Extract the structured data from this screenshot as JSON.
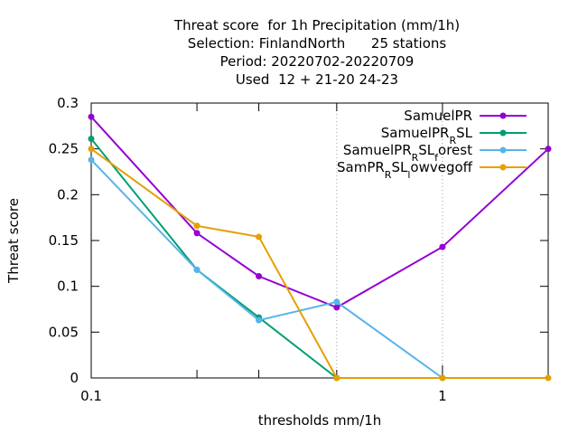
{
  "chart_data": {
    "type": "line",
    "title_lines": [
      "Threat score  for 1h Precipitation (mm/1h)",
      "Selection: FinlandNorth      25 stations",
      "Period: 20220702-20220709",
      "Used  12 + 21-20 24-23"
    ],
    "xlabel": "thresholds mm/1h",
    "ylabel": "Threat score",
    "x_scale": "log",
    "xlim": [
      0.1,
      2.0
    ],
    "ylim": [
      0,
      0.3
    ],
    "x_ticks": [
      {
        "value": 0.1,
        "label": "0.1"
      },
      {
        "value": 1,
        "label": "1"
      }
    ],
    "x_minor_ticks": [
      0.2,
      0.3,
      0.5
    ],
    "y_ticks": [
      {
        "value": 0,
        "label": "0"
      },
      {
        "value": 0.05,
        "label": "0.05"
      },
      {
        "value": 0.1,
        "label": "0.1"
      },
      {
        "value": 0.15,
        "label": "0.15"
      },
      {
        "value": 0.2,
        "label": "0.2"
      },
      {
        "value": 0.25,
        "label": "0.25"
      },
      {
        "value": 0.3,
        "label": "0.3"
      }
    ],
    "grid": "dotted gray at 0.5 and 1",
    "legend_placement": "top-right",
    "series": [
      {
        "name": "SamuelPR",
        "name_main": "SamuelPR",
        "name_sub": "",
        "name_after": "",
        "color": "#9400d3",
        "points": [
          [
            0.1,
            0.285
          ],
          [
            0.2,
            0.158
          ],
          [
            0.3,
            0.111
          ],
          [
            0.5,
            0.077
          ],
          [
            1.0,
            0.143
          ],
          [
            2.0,
            0.25
          ]
        ]
      },
      {
        "name": "SamuelPR_RSL",
        "name_main": "SamuelPR",
        "name_sub": "R",
        "name_after": "SL",
        "color": "#009e73",
        "points": [
          [
            0.1,
            0.261
          ],
          [
            0.2,
            0.118
          ],
          [
            0.3,
            0.066
          ],
          [
            0.5,
            0.0
          ]
        ]
      },
      {
        "name": "SamuelPR_RSL_forest",
        "name_main": "SamuelPR",
        "name_sub": "R",
        "name_after": "SL",
        "name_sub2": "f",
        "name_after2": "orest",
        "color": "#56b4e9",
        "points": [
          [
            0.1,
            0.238
          ],
          [
            0.2,
            0.118
          ],
          [
            0.3,
            0.063
          ],
          [
            0.5,
            0.083
          ],
          [
            1.0,
            0.0
          ]
        ]
      },
      {
        "name": "SamPR_RSL_lowvegoff",
        "name_main": "SamPR",
        "name_sub": "R",
        "name_after": "SL",
        "name_sub2": "l",
        "name_after2": "owvegoff",
        "color": "#e69f00",
        "points": [
          [
            0.1,
            0.25
          ],
          [
            0.2,
            0.166
          ],
          [
            0.3,
            0.154
          ],
          [
            0.5,
            0.0
          ],
          [
            1.0,
            0.0
          ],
          [
            2.0,
            0.0
          ]
        ]
      }
    ]
  }
}
